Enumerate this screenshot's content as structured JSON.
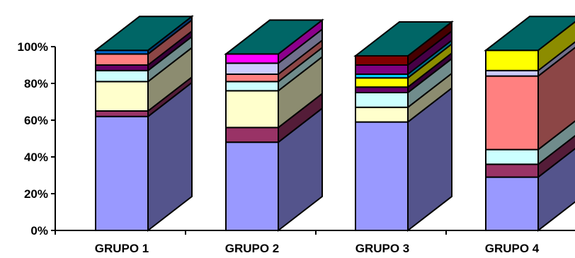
{
  "chart_data": {
    "type": "bar",
    "subtype": "stacked-100-3d",
    "title": "",
    "xlabel": "",
    "ylabel": "",
    "ylim": [
      0,
      100
    ],
    "yticks": [
      "0%",
      "20%",
      "40%",
      "60%",
      "80%",
      "100%"
    ],
    "categories": [
      "GRUPO 1",
      "GRUPO 2",
      "GRUPO 3",
      "GRUPO 4"
    ],
    "grid": false,
    "legend": "none",
    "series": [
      {
        "color": "#9999ff",
        "values": [
          62,
          48,
          59,
          29
        ]
      },
      {
        "color": "#993366",
        "values": [
          3,
          8,
          0,
          7
        ]
      },
      {
        "color": "#ffffcc",
        "values": [
          16,
          20,
          8,
          0
        ]
      },
      {
        "color": "#ccffff",
        "values": [
          6,
          5,
          8,
          8
        ]
      },
      {
        "color": "#ff8080",
        "values": [
          0,
          4,
          0,
          40
        ]
      },
      {
        "color": "#ccccff",
        "values": [
          0,
          6,
          0,
          3
        ]
      },
      {
        "color": "#660066",
        "values": [
          3,
          0,
          3,
          0
        ]
      },
      {
        "color": "#ffff00",
        "values": [
          0,
          0,
          5,
          11
        ]
      },
      {
        "color": "#00ccff",
        "values": [
          0,
          0,
          2,
          0
        ]
      },
      {
        "color": "#800080",
        "values": [
          0,
          0,
          5,
          0
        ]
      },
      {
        "color": "#800000",
        "values": [
          0,
          0,
          5,
          0
        ]
      },
      {
        "color": "#ff8080",
        "values": [
          6,
          0,
          0,
          0
        ]
      },
      {
        "color": "#ff00ff",
        "values": [
          0,
          5,
          0,
          0
        ]
      },
      {
        "color": "#0066cc",
        "values": [
          2,
          0,
          0,
          0
        ]
      }
    ],
    "top_color": "#006666"
  }
}
